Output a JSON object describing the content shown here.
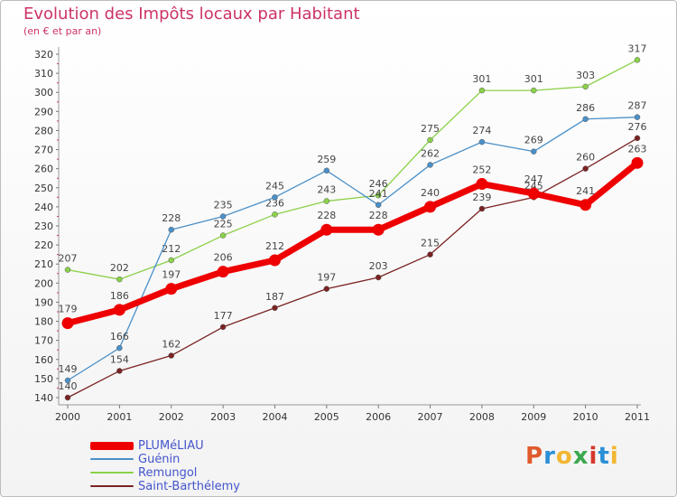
{
  "header": {
    "title": "Evolution des Impôts locaux par Habitant",
    "subtitle": "(en € et par an)"
  },
  "logo": {
    "text": "Proxiti",
    "colors": [
      "#e05a2b",
      "#2b8fd6",
      "#f2b632",
      "#3aa84d",
      "#d6382b",
      "#2b8fd6",
      "#f2b632"
    ]
  },
  "colors": {
    "title": "#cc3366",
    "legend_text": "#4455cc",
    "axis": "#777777",
    "grid_tick": "#cc3366"
  },
  "chart_data": {
    "type": "line",
    "title": "Evolution des Impôts locaux par Habitant",
    "subtitle": "(en € et par an)",
    "x": [
      "2000",
      "2001",
      "2002",
      "2003",
      "2004",
      "2005",
      "2006",
      "2007",
      "2008",
      "2009",
      "2010",
      "2011"
    ],
    "ylim": [
      140,
      320
    ],
    "yticks": [
      140,
      150,
      160,
      170,
      180,
      190,
      200,
      210,
      220,
      230,
      240,
      250,
      260,
      270,
      280,
      290,
      300,
      310,
      320
    ],
    "grid": false,
    "legend_position": "bottom-left",
    "series": [
      {
        "name": "PLUMéLIAU",
        "color": "#ee0000",
        "values": [
          179,
          186,
          197,
          206,
          212,
          228,
          228,
          240,
          252,
          247,
          241,
          263
        ]
      },
      {
        "name": "Guénin",
        "color": "#4a90c8",
        "values": [
          149,
          166,
          228,
          235,
          245,
          259,
          241,
          262,
          274,
          269,
          286,
          287
        ]
      },
      {
        "name": "Remungol",
        "color": "#8bd14a",
        "values": [
          207,
          202,
          212,
          225,
          236,
          243,
          246,
          275,
          301,
          301,
          303,
          317
        ]
      },
      {
        "name": "Saint-Barthélemy",
        "color": "#7a2222",
        "values": [
          140,
          154,
          162,
          177,
          187,
          197,
          203,
          215,
          239,
          245,
          260,
          276
        ]
      }
    ]
  }
}
